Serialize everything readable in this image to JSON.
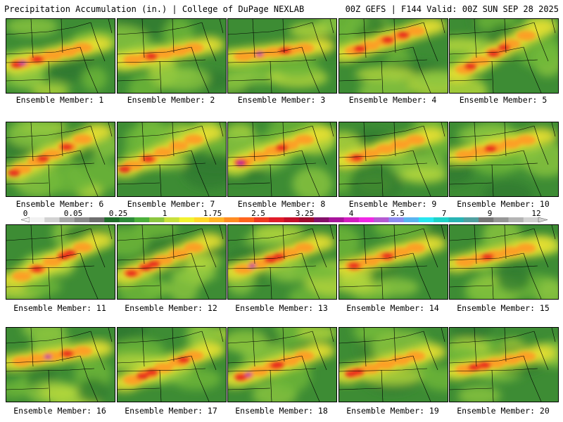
{
  "header": {
    "title": "Precipitation Accumulation (in.) | College of DuPage NEXLAB",
    "valid": "00Z GEFS | F144 Valid: 00Z SUN SEP 28 2025"
  },
  "members": [
    {
      "label": "Ensemble Member: 1"
    },
    {
      "label": "Ensemble Member: 2"
    },
    {
      "label": "Ensemble Member: 3"
    },
    {
      "label": "Ensemble Member: 4"
    },
    {
      "label": "Ensemble Member: 5"
    },
    {
      "label": "Ensemble Member: 6"
    },
    {
      "label": "Ensemble Member: 7"
    },
    {
      "label": "Ensemble Member: 8"
    },
    {
      "label": "Ensemble Member: 9"
    },
    {
      "label": "Ensemble Member: 10"
    },
    {
      "label": "Ensemble Member: 11"
    },
    {
      "label": "Ensemble Member: 12"
    },
    {
      "label": "Ensemble Member: 13"
    },
    {
      "label": "Ensemble Member: 14"
    },
    {
      "label": "Ensemble Member: 15"
    },
    {
      "label": "Ensemble Member: 16"
    },
    {
      "label": "Ensemble Member: 17"
    },
    {
      "label": "Ensemble Member: 18"
    },
    {
      "label": "Ensemble Member: 19"
    },
    {
      "label": "Ensemble Member: 20"
    }
  ],
  "colorbar": {
    "tick_labels": [
      "0",
      "0.05",
      "0.25",
      "1",
      "1.75",
      "2.5",
      "3.25",
      "4",
      "5.5",
      "7",
      "9",
      "12"
    ],
    "colors": [
      "#f2f2f2",
      "#d2d2d2",
      "#a8a8a8",
      "#8c8c8c",
      "#6e6e6e",
      "#1f6d2a",
      "#2e8b3a",
      "#4caf3b",
      "#8cc63f",
      "#c8e03c",
      "#f2f230",
      "#ffd72a",
      "#ffb428",
      "#ff8c22",
      "#ff641e",
      "#ee3a22",
      "#e01c2a",
      "#c40e2a",
      "#a00c30",
      "#84106a",
      "#a8149c",
      "#d21ec0",
      "#f028e6",
      "#b45ad2",
      "#8c8cf0",
      "#5ab4f0",
      "#28e6f0",
      "#1ed2c8",
      "#28b4b4",
      "#50a0a0",
      "#787878",
      "#969696",
      "#b4b4b4",
      "#d2d2d2"
    ]
  }
}
